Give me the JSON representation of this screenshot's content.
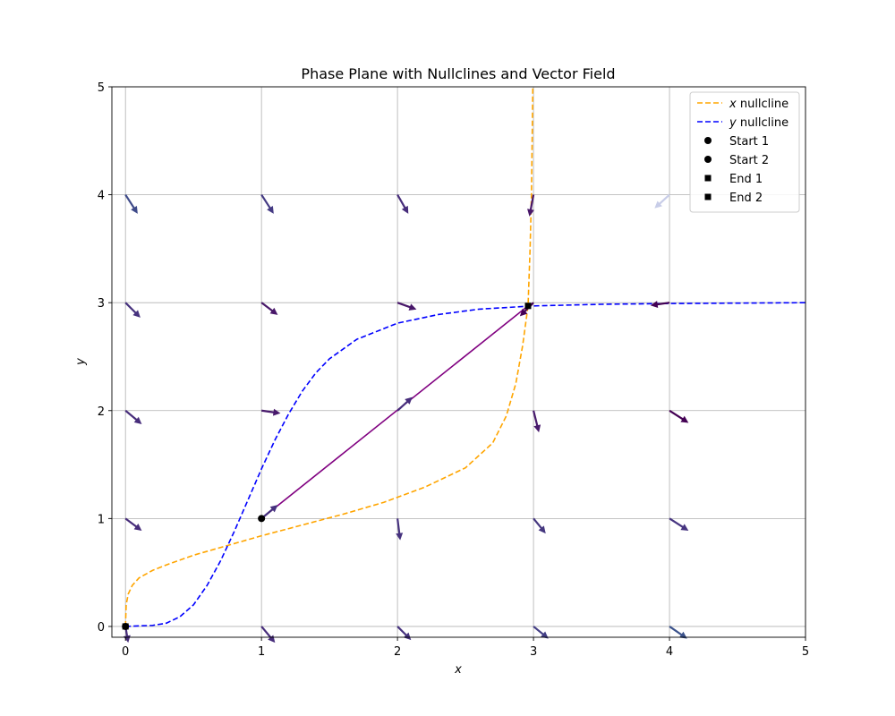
{
  "chart_data": {
    "type": "line",
    "title": "Phase Plane with Nullclines and Vector Field",
    "xlabel": "x",
    "ylabel": "y",
    "xlim": [
      -0.1,
      5
    ],
    "ylim": [
      -0.1,
      5
    ],
    "grid": true,
    "x_ticks": [
      "0",
      "1",
      "2",
      "3",
      "4",
      "5"
    ],
    "y_ticks": [
      "0",
      "1",
      "2",
      "3",
      "4",
      "5"
    ],
    "legend_position": "top-right",
    "legend": [
      {
        "symbol": "dashed-line",
        "italic": "x",
        "text": " nullcline",
        "color": "#ffa500"
      },
      {
        "symbol": "dashed-line",
        "italic": "y",
        "text": " nullcline",
        "color": "#0000ff"
      },
      {
        "symbol": "circle",
        "italic": "",
        "text": "Start 1",
        "color": "#000000"
      },
      {
        "symbol": "circle",
        "italic": "",
        "text": "Start 2",
        "color": "#000000"
      },
      {
        "symbol": "square",
        "italic": "",
        "text": "End 1",
        "color": "#000000"
      },
      {
        "symbol": "square",
        "italic": "",
        "text": "End 2",
        "color": "#000000"
      }
    ],
    "series": [
      {
        "name": "x nullcline",
        "style": "dashed",
        "color": "#ffa500",
        "points": [
          [
            0.0,
            0.0
          ],
          [
            0.005,
            0.2
          ],
          [
            0.02,
            0.3
          ],
          [
            0.05,
            0.38
          ],
          [
            0.1,
            0.45
          ],
          [
            0.2,
            0.52
          ],
          [
            0.3,
            0.57
          ],
          [
            0.5,
            0.66
          ],
          [
            0.75,
            0.75
          ],
          [
            1.0,
            0.84
          ],
          [
            1.3,
            0.94
          ],
          [
            1.6,
            1.04
          ],
          [
            1.9,
            1.15
          ],
          [
            2.2,
            1.29
          ],
          [
            2.5,
            1.47
          ],
          [
            2.7,
            1.7
          ],
          [
            2.8,
            1.95
          ],
          [
            2.87,
            2.25
          ],
          [
            2.92,
            2.6
          ],
          [
            2.96,
            2.97
          ],
          [
            2.975,
            3.5
          ],
          [
            2.985,
            4.0
          ],
          [
            2.99,
            4.5
          ],
          [
            2.995,
            5.0
          ]
        ]
      },
      {
        "name": "y nullcline",
        "style": "dashed",
        "color": "#0000ff",
        "points": [
          [
            0.0,
            0.0
          ],
          [
            0.2,
            0.01
          ],
          [
            0.3,
            0.03
          ],
          [
            0.4,
            0.09
          ],
          [
            0.5,
            0.2
          ],
          [
            0.6,
            0.38
          ],
          [
            0.7,
            0.61
          ],
          [
            0.8,
            0.88
          ],
          [
            0.9,
            1.17
          ],
          [
            1.0,
            1.46
          ],
          [
            1.1,
            1.73
          ],
          [
            1.2,
            1.97
          ],
          [
            1.3,
            2.18
          ],
          [
            1.4,
            2.35
          ],
          [
            1.5,
            2.48
          ],
          [
            1.7,
            2.66
          ],
          [
            2.0,
            2.81
          ],
          [
            2.3,
            2.89
          ],
          [
            2.6,
            2.94
          ],
          [
            3.0,
            2.97
          ],
          [
            3.5,
            2.985
          ],
          [
            4.0,
            2.992
          ],
          [
            5.0,
            3.0
          ]
        ]
      },
      {
        "name": "trajectory 1",
        "style": "solid",
        "color": "#800080",
        "points": [
          [
            1.0,
            1.0
          ],
          [
            2.96,
            2.97
          ]
        ]
      },
      {
        "name": "trajectory 2",
        "style": "solid",
        "color": "#800080",
        "points": [
          [
            0.0,
            0.0
          ],
          [
            0.0,
            0.0
          ]
        ]
      }
    ],
    "start_points": [
      [
        1.0,
        1.0
      ],
      [
        0.0,
        0.0
      ]
    ],
    "end_points": [
      [
        2.96,
        2.97
      ],
      [
        0.0,
        0.0
      ]
    ],
    "quiver": [
      {
        "x": 0.0,
        "y": 0.0,
        "u": 0.02,
        "v": -0.12,
        "color": "#472d7b"
      },
      {
        "x": 1.0,
        "y": 0.0,
        "u": 0.1,
        "v": -0.12,
        "color": "#472d7b"
      },
      {
        "x": 2.0,
        "y": 0.0,
        "u": 0.1,
        "v": -0.1,
        "color": "#46327e"
      },
      {
        "x": 3.0,
        "y": 0.0,
        "u": 0.11,
        "v": -0.09,
        "color": "#433e85"
      },
      {
        "x": 4.0,
        "y": 0.0,
        "u": 0.13,
        "v": -0.09,
        "color": "#3b528b"
      },
      {
        "x": 0.0,
        "y": 1.0,
        "u": 0.12,
        "v": -0.09,
        "color": "#472c7a"
      },
      {
        "x": 1.0,
        "y": 1.0,
        "u": 0.12,
        "v": 0.1,
        "color": "#46307e"
      },
      {
        "x": 2.0,
        "y": 1.0,
        "u": 0.02,
        "v": -0.16,
        "color": "#46327e"
      },
      {
        "x": 3.0,
        "y": 1.0,
        "u": 0.09,
        "v": -0.11,
        "color": "#45377f"
      },
      {
        "x": 4.0,
        "y": 1.0,
        "u": 0.14,
        "v": -0.09,
        "color": "#463480"
      },
      {
        "x": 0.0,
        "y": 2.0,
        "u": 0.12,
        "v": -0.1,
        "color": "#472d7b"
      },
      {
        "x": 1.0,
        "y": 2.0,
        "u": 0.14,
        "v": -0.02,
        "color": "#481a6c"
      },
      {
        "x": 2.0,
        "y": 2.0,
        "u": 0.11,
        "v": 0.1,
        "color": "#472d7b"
      },
      {
        "x": 3.0,
        "y": 2.0,
        "u": 0.04,
        "v": -0.16,
        "color": "#481a6c"
      },
      {
        "x": 4.0,
        "y": 2.0,
        "u": 0.14,
        "v": -0.09,
        "color": "#440154"
      },
      {
        "x": 0.0,
        "y": 3.0,
        "u": 0.11,
        "v": -0.11,
        "color": "#46327e"
      },
      {
        "x": 1.0,
        "y": 3.0,
        "u": 0.12,
        "v": -0.09,
        "color": "#481769"
      },
      {
        "x": 2.0,
        "y": 3.0,
        "u": 0.14,
        "v": -0.05,
        "color": "#481769"
      },
      {
        "x": 3.0,
        "y": 3.0,
        "u": -0.1,
        "v": -0.1,
        "color": "#440154"
      },
      {
        "x": 4.0,
        "y": 3.0,
        "u": -0.14,
        "v": -0.02,
        "color": "#440154"
      },
      {
        "x": 0.0,
        "y": 4.0,
        "u": 0.09,
        "v": -0.14,
        "color": "#3e4a89"
      },
      {
        "x": 1.0,
        "y": 4.0,
        "u": 0.09,
        "v": -0.14,
        "color": "#443a83"
      },
      {
        "x": 2.0,
        "y": 4.0,
        "u": 0.08,
        "v": -0.14,
        "color": "#472d7b"
      },
      {
        "x": 3.0,
        "y": 4.0,
        "u": -0.03,
        "v": -0.16,
        "color": "#481769"
      },
      {
        "x": 4.0,
        "y": 4.0,
        "u": -0.11,
        "v": -0.1,
        "color": "#c8cde8"
      }
    ]
  }
}
